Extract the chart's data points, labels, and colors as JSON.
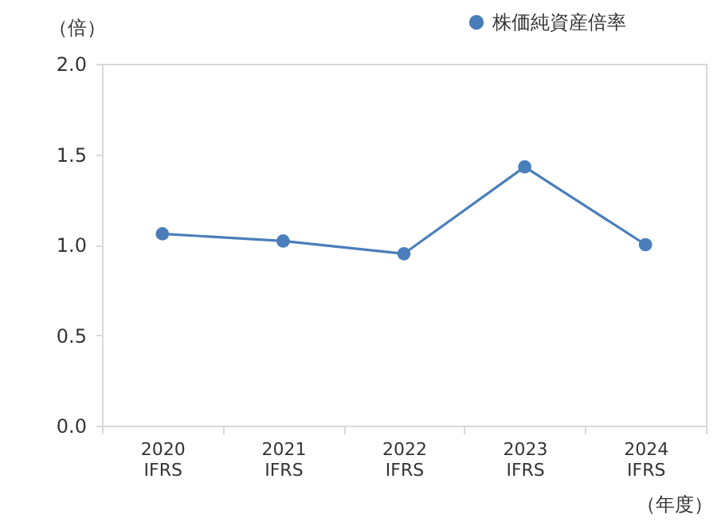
{
  "chart_data": {
    "type": "line",
    "categories": [
      "2020\nIFRS",
      "2021\nIFRS",
      "2022\nIFRS",
      "2023\nIFRS",
      "2024\nIFRS"
    ],
    "series": [
      {
        "name": "株価純資産倍率",
        "color": "#4a7ebb",
        "values": [
          1.06,
          1.02,
          0.95,
          1.43,
          1.0
        ]
      }
    ],
    "ylabel": "（倍）",
    "xlabel": "（年度）",
    "ylim": [
      0,
      2
    ],
    "yticks": [
      {
        "value": 0,
        "label": "0.0"
      },
      {
        "value": 0.5,
        "label": "0.5"
      },
      {
        "value": 1,
        "label": "1.0"
      },
      {
        "value": 1.5,
        "label": "1.5"
      },
      {
        "value": 2,
        "label": "2.0"
      }
    ],
    "legend": "top right",
    "marker": "circle",
    "line_style": "solid",
    "grid": false
  }
}
